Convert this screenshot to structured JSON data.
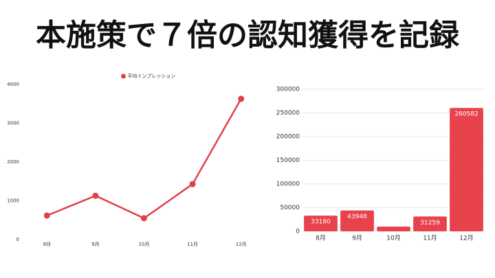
{
  "title": "本施策で７倍の認知獲得を記録",
  "chart_data": [
    {
      "type": "line",
      "categories": [
        "8月",
        "9月",
        "10月",
        "11月",
        "12月"
      ],
      "series": [
        {
          "name": "平均インプレッション",
          "color": "#e0404a",
          "values": [
            620,
            1130,
            550,
            1430,
            3630
          ]
        }
      ],
      "ylim": [
        0,
        4000
      ],
      "yticks": [
        0,
        1000,
        2000,
        3000,
        4000
      ],
      "grid": false,
      "legend": "top"
    },
    {
      "type": "bar",
      "categories": [
        "8月",
        "9月",
        "10月",
        "11月",
        "12月"
      ],
      "values": [
        33180,
        43948,
        10000,
        31259,
        260582
      ],
      "value_labels": [
        "33180",
        "43948",
        null,
        "31259",
        "260582"
      ],
      "color": "#e8424d",
      "ylim": [
        0,
        300000
      ],
      "yticks": [
        0,
        50000,
        100000,
        150000,
        200000,
        250000,
        300000
      ],
      "grid": true
    }
  ]
}
